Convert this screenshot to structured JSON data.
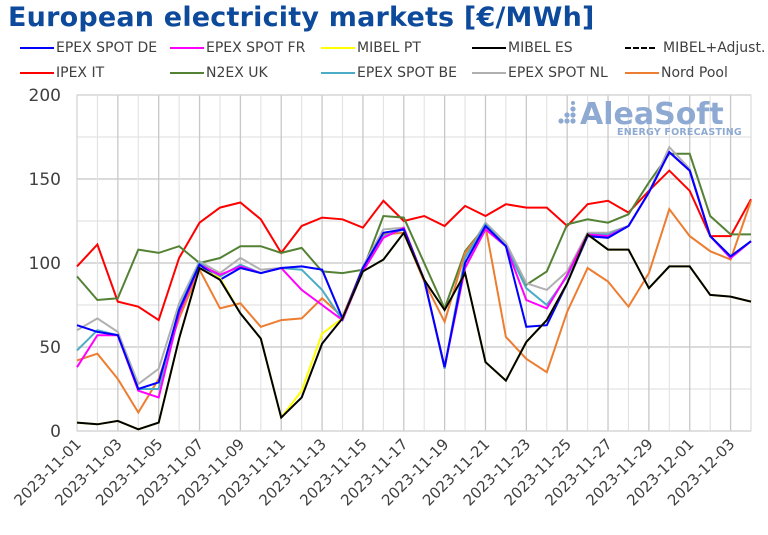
{
  "chart_data": {
    "type": "line",
    "title": "European electricity markets [€/MWh]",
    "xlabel": "",
    "ylabel": "",
    "ylim": [
      0,
      200
    ],
    "yticks": [
      0,
      50,
      100,
      150,
      200
    ],
    "grid": true,
    "legend_position": "top",
    "x": [
      "2023-11-01",
      "2023-11-02",
      "2023-11-03",
      "2023-11-04",
      "2023-11-05",
      "2023-11-06",
      "2023-11-07",
      "2023-11-08",
      "2023-11-09",
      "2023-11-10",
      "2023-11-11",
      "2023-11-12",
      "2023-11-13",
      "2023-11-14",
      "2023-11-15",
      "2023-11-16",
      "2023-11-17",
      "2023-11-18",
      "2023-11-19",
      "2023-11-20",
      "2023-11-21",
      "2023-11-22",
      "2023-11-23",
      "2023-11-24",
      "2023-11-25",
      "2023-11-26",
      "2023-11-27",
      "2023-11-28",
      "2023-11-29",
      "2023-11-30",
      "2023-12-01",
      "2023-12-02",
      "2023-12-03",
      "2023-12-04"
    ],
    "xtick_labels": [
      "2023-11-01",
      "2023-11-03",
      "2023-11-05",
      "2023-11-07",
      "2023-11-09",
      "2023-11-11",
      "2023-11-13",
      "2023-11-15",
      "2023-11-17",
      "2023-11-19",
      "2023-11-21",
      "2023-11-23",
      "2023-11-25",
      "2023-11-27",
      "2023-11-29",
      "2023-12-01",
      "2023-12-03"
    ],
    "series": [
      {
        "name": "IPEX IT",
        "color": "#ff0000",
        "style": "solid",
        "values": [
          98,
          111,
          77,
          74,
          66,
          103,
          124,
          133,
          136,
          126,
          106,
          122,
          127,
          126,
          121,
          137,
          125,
          128,
          122,
          134,
          128,
          135,
          133,
          133,
          122,
          135,
          137,
          130,
          143,
          155,
          143,
          116,
          116,
          138
        ]
      },
      {
        "name": "N2EX UK",
        "color": "#548235",
        "style": "solid",
        "values": [
          92,
          78,
          79,
          108,
          106,
          110,
          100,
          103,
          110,
          110,
          106,
          109,
          95,
          94,
          96,
          128,
          127,
          100,
          73,
          107,
          122,
          110,
          87,
          95,
          123,
          126,
          124,
          129,
          148,
          165,
          165,
          128,
          117,
          117
        ]
      },
      {
        "name": "EPEX SPOT NL",
        "color": "#b0b0b0",
        "style": "solid",
        "values": [
          60,
          67,
          59,
          28,
          37,
          76,
          101,
          94,
          103,
          96,
          97,
          98,
          96,
          67,
          98,
          120,
          121,
          90,
          38,
          104,
          124,
          112,
          88,
          84,
          95,
          118,
          118,
          122,
          142,
          169,
          156,
          116,
          104,
          113
        ]
      },
      {
        "name": "Nord Pool",
        "color": "#ed7d31",
        "style": "solid",
        "values": [
          42,
          46,
          31,
          11,
          31,
          67,
          96,
          73,
          76,
          62,
          66,
          67,
          79,
          68,
          97,
          117,
          118,
          89,
          65,
          106,
          122,
          56,
          43,
          35,
          71,
          97,
          89,
          74,
          94,
          132,
          116,
          107,
          102,
          137
        ]
      },
      {
        "name": "EPEX SPOT BE",
        "color": "#4bacc6",
        "style": "solid",
        "values": [
          48,
          60,
          57,
          25,
          25,
          73,
          100,
          92,
          99,
          94,
          97,
          96,
          84,
          66,
          97,
          116,
          120,
          90,
          37,
          103,
          123,
          110,
          85,
          75,
          92,
          117,
          117,
          122,
          142,
          166,
          155,
          116,
          103,
          113
        ]
      },
      {
        "name": "EPEX SPOT FR",
        "color": "#ff00ff",
        "style": "solid",
        "values": [
          38,
          57,
          57,
          24,
          20,
          70,
          99,
          93,
          98,
          94,
          97,
          84,
          75,
          66,
          95,
          115,
          121,
          90,
          38,
          97,
          120,
          110,
          78,
          73,
          93,
          117,
          116,
          122,
          142,
          166,
          155,
          116,
          103,
          113
        ]
      },
      {
        "name": "EPEX SPOT DE",
        "color": "#0000ff",
        "style": "solid",
        "values": [
          63,
          59,
          57,
          25,
          29,
          72,
          99,
          90,
          97,
          94,
          97,
          98,
          96,
          67,
          97,
          118,
          120,
          90,
          38,
          100,
          122,
          110,
          62,
          63,
          88,
          116,
          115,
          122,
          142,
          166,
          155,
          116,
          104,
          113
        ]
      },
      {
        "name": "MIBEL PT",
        "color": "#ffff00",
        "style": "solid",
        "values": [
          5,
          4,
          6,
          1,
          5,
          55,
          97,
          91,
          70,
          55,
          8,
          24,
          58,
          67,
          95,
          102,
          118,
          90,
          72,
          94,
          41,
          30,
          53,
          66,
          88,
          117,
          108,
          108,
          85,
          98,
          98,
          81,
          80,
          77
        ]
      },
      {
        "name": "MIBEL ES",
        "color": "#000000",
        "style": "solid",
        "values": [
          5,
          4,
          6,
          1,
          5,
          55,
          97,
          90,
          70,
          55,
          8,
          20,
          52,
          67,
          95,
          102,
          118,
          90,
          72,
          94,
          41,
          30,
          53,
          66,
          88,
          117,
          108,
          108,
          85,
          98,
          98,
          81,
          80,
          77
        ]
      },
      {
        "name": "MIBEL+Adjust.",
        "color": "#000000",
        "style": "dashed",
        "values": []
      }
    ]
  },
  "legend": [
    {
      "label": "EPEX SPOT DE",
      "color": "#0000ff",
      "style": "solid"
    },
    {
      "label": "EPEX SPOT FR",
      "color": "#ff00ff",
      "style": "solid"
    },
    {
      "label": "MIBEL PT",
      "color": "#ffff00",
      "style": "solid"
    },
    {
      "label": "MIBEL ES",
      "color": "#000000",
      "style": "solid"
    },
    {
      "label": "MIBEL+Adjust.",
      "color": "#000000",
      "style": "dashed"
    },
    {
      "label": "IPEX IT",
      "color": "#ff0000",
      "style": "solid"
    },
    {
      "label": "N2EX UK",
      "color": "#548235",
      "style": "solid"
    },
    {
      "label": "EPEX SPOT BE",
      "color": "#4bacc6",
      "style": "solid"
    },
    {
      "label": "EPEX SPOT NL",
      "color": "#b0b0b0",
      "style": "solid"
    },
    {
      "label": "Nord Pool",
      "color": "#ed7d31",
      "style": "solid"
    }
  ],
  "watermark": {
    "brand": "AleaSoft",
    "tagline": "ENERGY FORECASTING"
  }
}
